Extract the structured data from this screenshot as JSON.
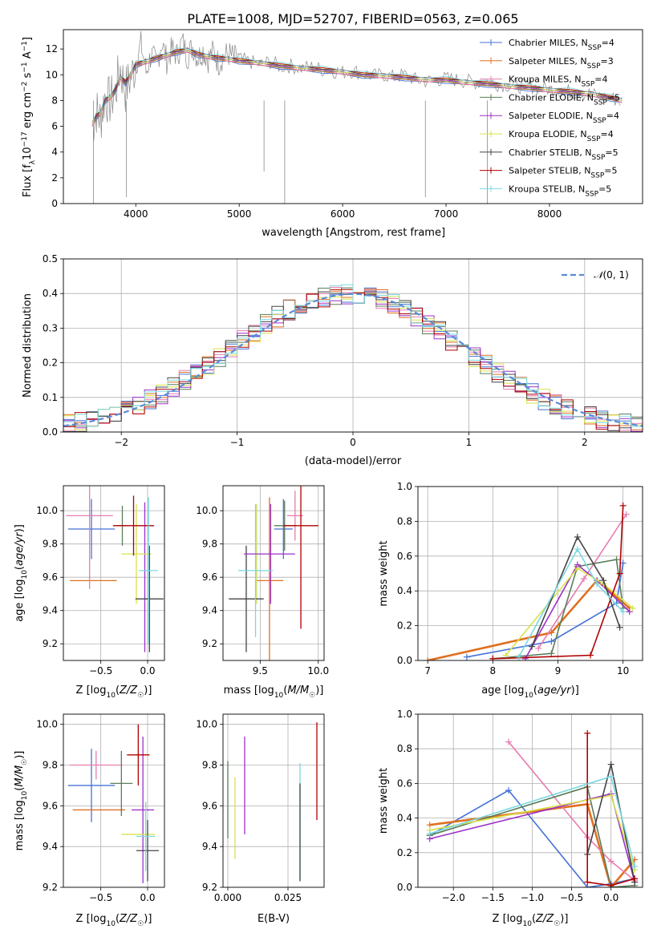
{
  "figure": {
    "title": "PLATE=1008, MJD=52707, FIBERID=0563, z=0.065"
  },
  "colors": [
    "#4472d6",
    "#e07020",
    "#e87cb0",
    "#5a7d5a",
    "#9b30c8",
    "#d8e24a",
    "#444444",
    "#b00000",
    "#7ad8e0",
    "#888888"
  ],
  "chart_data": [
    {
      "id": "spectrum",
      "type": "line",
      "title": "PLATE=1008, MJD=52707, FIBERID=0563, z=0.065",
      "xlabel": "wavelength [Angstrom, rest frame]",
      "ylabel": "Flux [f_λ 10^-17 erg cm^-2 s^-1 A^-1]",
      "xlim": [
        3300,
        8900
      ],
      "ylim": [
        0,
        13.5
      ],
      "xticks": [
        4000,
        5000,
        6000,
        7000,
        8000
      ],
      "yticks": [
        0,
        2,
        4,
        6,
        8,
        10,
        12
      ],
      "grid": false,
      "legend_position": "top-right",
      "legend": [
        "Chabrier MILES, N_SSP=4",
        "Salpeter MILES, N_SSP=3",
        "Kroupa MILES, N_SSP=4",
        "Chabrier ELODIE, N_SSP=5",
        "Salpeter ELODIE, N_SSP=4",
        "Kroupa ELODIE, N_SSP=4",
        "Chabrier STELIB, N_SSP=5",
        "Salpeter STELIB, N_SSP=5",
        "Kroupa STELIB, N_SSP=5"
      ],
      "data_color": "#888888",
      "data_x": [
        3580,
        3620,
        3660,
        3700,
        3750,
        3800,
        3850,
        3900,
        3950,
        4000,
        4050,
        4100,
        4150,
        4200,
        4250,
        4300,
        4350,
        4400,
        4450,
        4500,
        4550,
        4600,
        4650,
        4700,
        4750,
        4800,
        4850,
        4900,
        4950,
        5000,
        5100,
        5200,
        5300,
        5400,
        5500,
        5600,
        5700,
        5800,
        5900,
        6000,
        6100,
        6200,
        6300,
        6400,
        6500,
        6600,
        6700,
        6800,
        6900,
        7000,
        7100,
        7200,
        7300,
        7400,
        7500,
        7600,
        7700,
        7800,
        7900,
        8000,
        8100,
        8200,
        8300,
        8400,
        8500,
        8600,
        8700
      ],
      "data_y": [
        6.0,
        7.2,
        6.5,
        8.3,
        7.9,
        8.6,
        10.5,
        8.8,
        9.8,
        10.7,
        12.4,
        10.2,
        11.6,
        10.8,
        12.5,
        11.1,
        12.0,
        11.5,
        12.6,
        11.4,
        12.2,
        11.3,
        11.9,
        11.2,
        11.8,
        10.9,
        11.5,
        11.6,
        11.3,
        11.2,
        11.0,
        10.8,
        11.0,
        10.6,
        10.7,
        10.5,
        10.6,
        10.4,
        10.3,
        10.2,
        10.3,
        10.1,
        9.9,
        10.0,
        9.8,
        10.0,
        9.6,
        9.5,
        9.6,
        9.7,
        9.6,
        9.5,
        9.4,
        9.5,
        9.3,
        9.2,
        9.1,
        9.2,
        9.0,
        8.9,
        8.8,
        8.7,
        8.6,
        8.5,
        8.3,
        8.2,
        7.9
      ],
      "model_x": [
        3580,
        3620,
        3660,
        3700,
        3750,
        3800,
        3850,
        3900,
        3950,
        4000,
        4100,
        4200,
        4300,
        4400,
        4500,
        4600,
        4700,
        4800,
        4900,
        5000,
        5200,
        5400,
        5600,
        5800,
        6000,
        6200,
        6400,
        6600,
        6800,
        7000,
        7200,
        7400,
        7600,
        7800,
        8000,
        8200,
        8400,
        8600,
        8700
      ],
      "model_y": [
        6.2,
        6.8,
        7.0,
        8.0,
        8.2,
        8.8,
        9.8,
        9.4,
        10.0,
        10.8,
        11.0,
        11.3,
        11.5,
        11.8,
        11.9,
        11.6,
        11.4,
        11.3,
        11.2,
        11.1,
        10.9,
        10.7,
        10.5,
        10.4,
        10.2,
        10.0,
        9.9,
        9.8,
        9.6,
        9.6,
        9.4,
        9.3,
        9.1,
        9.0,
        8.8,
        8.7,
        8.5,
        8.2,
        8.0
      ]
    },
    {
      "id": "residuals",
      "type": "line",
      "xlabel": "(data-model)/error",
      "ylabel": "Normed distribution",
      "xlim": [
        -2.5,
        2.5
      ],
      "ylim": [
        0,
        0.5
      ],
      "xticks": [
        -2,
        -1,
        0,
        1,
        2
      ],
      "yticks": [
        0.0,
        0.1,
        0.2,
        0.3,
        0.4,
        0.5
      ],
      "grid": true,
      "legend_position": "top-right",
      "legend": [
        "𝒩(0,1)"
      ],
      "bin_width": 0.1,
      "gaussian": {
        "mean": 0,
        "sigma": 1
      }
    },
    {
      "id": "age_vs_Z",
      "type": "scatter",
      "xlabel": "Z [log10(Z/Z☉)]",
      "ylabel": "age [log10(age/yr)]",
      "xlim": [
        -0.9,
        0.18
      ],
      "ylim": [
        9.1,
        10.15
      ],
      "xticks": [
        -0.5,
        0.0
      ],
      "yticks": [
        9.2,
        9.4,
        9.6,
        9.8,
        10.0
      ],
      "grid": true,
      "points": [
        {
          "x": -0.6,
          "y": 9.89,
          "xerr": 0.25,
          "yerr": 0.18,
          "c": 0
        },
        {
          "x": -0.58,
          "y": 9.58,
          "xerr": 0.25,
          "yerr": 0.0,
          "c": 1
        },
        {
          "x": -0.62,
          "y": 9.97,
          "xerr": 0.25,
          "yerr": 0.44,
          "c": 2
        },
        {
          "x": -0.27,
          "y": 9.91,
          "xerr": 0.06,
          "yerr": 0.12,
          "c": 3
        },
        {
          "x": -0.03,
          "y": 9.6,
          "xerr": 0.0,
          "yerr": 0.45,
          "c": 4
        },
        {
          "x": -0.12,
          "y": 9.74,
          "xerr": 0.16,
          "yerr": 0.3,
          "c": 5
        },
        {
          "x": 0.02,
          "y": 9.47,
          "xerr": 0.15,
          "yerr": 0.32,
          "c": 6
        },
        {
          "x": -0.15,
          "y": 9.91,
          "xerr": 0.22,
          "yerr": 0.18,
          "c": 7
        },
        {
          "x": 0.01,
          "y": 9.64,
          "xerr": 0.1,
          "yerr": 0.44,
          "c": 8
        }
      ]
    },
    {
      "id": "age_vs_mass",
      "type": "scatter",
      "xlabel": "mass [log10(M/M☉)]",
      "ylabel": "",
      "xlim": [
        9.18,
        10.05
      ],
      "ylim": [
        9.1,
        10.15
      ],
      "xticks": [
        9.5,
        10.0
      ],
      "yticks": [
        9.2,
        9.4,
        9.6,
        9.8,
        10.0
      ],
      "grid": true,
      "points": [
        {
          "x": 9.7,
          "y": 9.89,
          "xerr": 0.08,
          "yerr": 0.18,
          "c": 0
        },
        {
          "x": 9.58,
          "y": 9.58,
          "xerr": 0.12,
          "yerr": 0.5,
          "c": 1
        },
        {
          "x": 9.8,
          "y": 9.97,
          "xerr": 0.07,
          "yerr": 0.15,
          "c": 2
        },
        {
          "x": 9.71,
          "y": 9.91,
          "xerr": 0.09,
          "yerr": 0.15,
          "c": 3
        },
        {
          "x": 9.59,
          "y": 9.74,
          "xerr": 0.0,
          "yerr": 0.3,
          "c": 4
        },
        {
          "x": 9.47,
          "y": 9.74,
          "xerr": 0.0,
          "yerr": 0.3,
          "c": 5
        },
        {
          "x": 9.38,
          "y": 9.47,
          "xerr": 0.15,
          "yerr": 0.32,
          "c": 6
        },
        {
          "x": 9.85,
          "y": 9.91,
          "xerr": 0.15,
          "yerr": 0.62,
          "c": 7
        },
        {
          "x": 9.46,
          "y": 9.64,
          "xerr": 0.15,
          "yerr": 0.4,
          "c": 8
        },
        {
          "x": 9.58,
          "y": 9.74,
          "xerr": 0.22,
          "yerr": 0.0,
          "c": 4
        }
      ]
    },
    {
      "id": "weight_vs_age",
      "type": "line",
      "xlabel": "age [log10(age/yr)]",
      "ylabel": "mass weight",
      "xlim": [
        6.85,
        10.3
      ],
      "ylim": [
        0,
        1.0
      ],
      "xticks": [
        7,
        8,
        9,
        10
      ],
      "yticks": [
        0.0,
        0.2,
        0.4,
        0.6,
        0.8,
        1.0
      ],
      "grid": true,
      "series": [
        {
          "c": 0,
          "x": [
            7.6,
            8.9,
            9.9,
            10.0
          ],
          "y": [
            0.02,
            0.11,
            0.33,
            0.56
          ]
        },
        {
          "c": 1,
          "x": [
            7.0,
            8.9,
            9.6,
            10.1
          ],
          "y": [
            0.0,
            0.16,
            0.46,
            0.3
          ]
        },
        {
          "c": 2,
          "x": [
            8.7,
            9.4,
            10.05
          ],
          "y": [
            0.07,
            0.47,
            0.84
          ]
        },
        {
          "c": 3,
          "x": [
            8.0,
            8.9,
            9.3,
            9.9,
            10.0
          ],
          "y": [
            0.01,
            0.04,
            0.54,
            0.58,
            0.3
          ]
        },
        {
          "c": 4,
          "x": [
            8.5,
            9.3,
            9.6,
            10.1
          ],
          "y": [
            0.01,
            0.55,
            0.46,
            0.28
          ]
        },
        {
          "c": 5,
          "x": [
            8.2,
            9.3,
            9.7,
            10.15
          ],
          "y": [
            0.03,
            0.53,
            0.44,
            0.3
          ]
        },
        {
          "c": 6,
          "x": [
            8.6,
            9.3,
            9.7,
            9.95
          ],
          "y": [
            0.08,
            0.71,
            0.46,
            0.19
          ]
        },
        {
          "c": 7,
          "x": [
            8.0,
            9.5,
            9.95,
            10.0
          ],
          "y": [
            0.01,
            0.03,
            0.5,
            0.89
          ]
        },
        {
          "c": 8,
          "x": [
            8.4,
            9.3,
            9.6,
            10.0
          ],
          "y": [
            0.02,
            0.64,
            0.44,
            0.28
          ]
        }
      ]
    },
    {
      "id": "mass_vs_Z",
      "type": "scatter",
      "xlabel": "Z [log10(Z/Z☉)]",
      "ylabel": "mass [log10(M/M☉)]",
      "xlim": [
        -0.9,
        0.18
      ],
      "ylim": [
        9.2,
        10.05
      ],
      "xticks": [
        -0.5,
        0.0
      ],
      "yticks": [
        9.2,
        9.4,
        9.6,
        9.8,
        10.0
      ],
      "grid": true,
      "points": [
        {
          "x": -0.6,
          "y": 9.7,
          "xerr": 0.25,
          "yerr": 0.18,
          "c": 0
        },
        {
          "x": -0.52,
          "y": 9.58,
          "xerr": 0.28,
          "yerr": 0.0,
          "c": 1
        },
        {
          "x": -0.55,
          "y": 9.8,
          "xerr": 0.28,
          "yerr": 0.07,
          "c": 2
        },
        {
          "x": -0.28,
          "y": 9.71,
          "xerr": 0.12,
          "yerr": 0.16,
          "c": 3
        },
        {
          "x": -0.05,
          "y": 9.58,
          "xerr": 0.12,
          "yerr": 0.36,
          "c": 4
        },
        {
          "x": -0.1,
          "y": 9.46,
          "xerr": 0.18,
          "yerr": 0.0,
          "c": 5
        },
        {
          "x": 0.0,
          "y": 9.38,
          "xerr": 0.12,
          "yerr": 0.15,
          "c": 6
        },
        {
          "x": -0.1,
          "y": 9.85,
          "xerr": 0.12,
          "yerr": 0.15,
          "c": 7
        },
        {
          "x": -0.02,
          "y": 9.45,
          "xerr": 0.1,
          "yerr": 0.17,
          "c": 8
        }
      ]
    },
    {
      "id": "mass_vs_ebv",
      "type": "scatter",
      "xlabel": "E(B-V)",
      "ylabel": "",
      "xlim": [
        -0.002,
        0.04
      ],
      "ylim": [
        9.2,
        10.05
      ],
      "xticks": [
        0.0,
        0.025
      ],
      "yticks": [
        9.2,
        9.4,
        9.6,
        9.8,
        10.0
      ],
      "grid": true,
      "points": [
        {
          "x": 0.0,
          "y": 9.63,
          "xerr": 0.0,
          "yerr": 0.19,
          "c": 3
        },
        {
          "x": 0.003,
          "y": 9.54,
          "xerr": 0.0,
          "yerr": 0.2,
          "c": 5
        },
        {
          "x": 0.007,
          "y": 9.7,
          "xerr": 0.0,
          "yerr": 0.24,
          "c": 4
        },
        {
          "x": 0.03,
          "y": 9.52,
          "xerr": 0.0,
          "yerr": 0.29,
          "c": 8
        },
        {
          "x": 0.03,
          "y": 9.47,
          "xerr": 0.0,
          "yerr": 0.24,
          "c": 6
        },
        {
          "x": 0.037,
          "y": 9.77,
          "xerr": 0.0,
          "yerr": 0.24,
          "c": 7
        }
      ]
    },
    {
      "id": "weight_vs_Z",
      "type": "line",
      "xlabel": "Z [log10(Z/Z☉)]",
      "ylabel": "mass weight",
      "xlim": [
        -2.45,
        0.4
      ],
      "ylim": [
        0,
        1.0
      ],
      "xticks": [
        -2.0,
        -1.5,
        -1.0,
        -0.5,
        0.0
      ],
      "yticks": [
        0.0,
        0.2,
        0.4,
        0.6,
        0.8,
        1.0
      ],
      "grid": true,
      "series": [
        {
          "c": 0,
          "x": [
            -2.3,
            -1.3,
            -0.3,
            0.0,
            0.3
          ],
          "y": [
            0.3,
            0.56,
            0.0,
            0.02,
            0.05
          ]
        },
        {
          "c": 1,
          "x": [
            -2.3,
            -0.3,
            0.0,
            0.3
          ],
          "y": [
            0.36,
            0.48,
            0.0,
            0.16
          ]
        },
        {
          "c": 2,
          "x": [
            -1.3,
            -0.3,
            0.0,
            0.3
          ],
          "y": [
            0.84,
            0.29,
            0.15,
            0.04
          ]
        },
        {
          "c": 3,
          "x": [
            -2.3,
            -0.3,
            0.0,
            0.3
          ],
          "y": [
            0.3,
            0.58,
            0.0,
            0.01
          ]
        },
        {
          "c": 4,
          "x": [
            -2.3,
            0.0,
            0.3
          ],
          "y": [
            0.28,
            0.54,
            0.03
          ]
        },
        {
          "c": 5,
          "x": [
            -2.3,
            0.0,
            0.3
          ],
          "y": [
            0.33,
            0.53,
            0.1
          ]
        },
        {
          "c": 6,
          "x": [
            -0.3,
            0.0,
            0.3
          ],
          "y": [
            0.19,
            0.71,
            0.03
          ]
        },
        {
          "c": 7,
          "x": [
            -0.3,
            -0.3,
            0.0,
            0.3
          ],
          "y": [
            0.89,
            0.03,
            0.01,
            0.05
          ]
        },
        {
          "c": 8,
          "x": [
            -2.3,
            0.0,
            0.3
          ],
          "y": [
            0.31,
            0.64,
            0.12
          ]
        }
      ]
    }
  ]
}
